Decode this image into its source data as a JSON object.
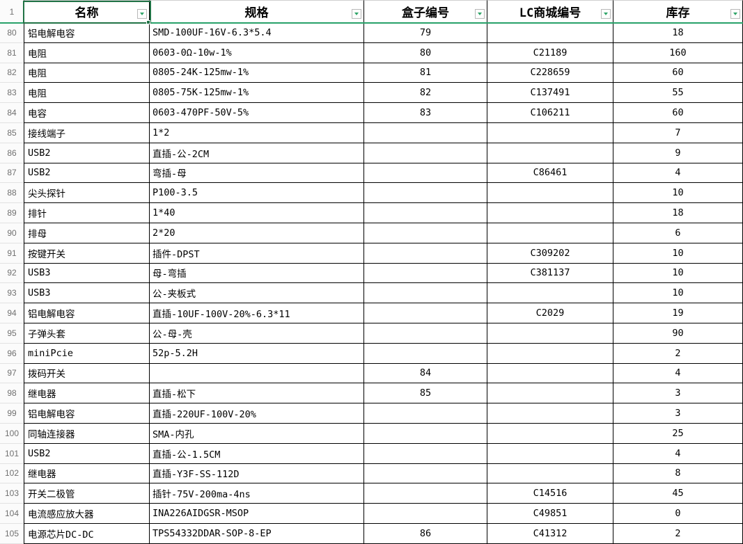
{
  "sheet": {
    "corner_row_label": "1",
    "selected_cell": "A1",
    "colors": {
      "selection_border": "#217346",
      "freeze_line": "#27a169",
      "filter_arrow": "#2fa569",
      "grid_border": "#000000",
      "row_header_text": "#707070"
    }
  },
  "columns": [
    {
      "key": "name",
      "label": "名称"
    },
    {
      "key": "spec",
      "label": "规格"
    },
    {
      "key": "box",
      "label": "盒子编号"
    },
    {
      "key": "lc",
      "label": "LC商城编号"
    },
    {
      "key": "stock",
      "label": "库存"
    }
  ],
  "rows": [
    {
      "num": "80",
      "name": "铝电解电容",
      "spec": "SMD-100UF-16V-6.3*5.4",
      "box": "79",
      "lc": "",
      "stock": "18"
    },
    {
      "num": "81",
      "name": "电阻",
      "spec": "0603-0Ω-10w-1%",
      "box": "80",
      "lc": "C21189",
      "stock": "160"
    },
    {
      "num": "82",
      "name": "电阻",
      "spec": "0805-24K-125mw-1%",
      "box": "81",
      "lc": "C228659",
      "stock": "60"
    },
    {
      "num": "83",
      "name": "电阻",
      "spec": "0805-75K-125mw-1%",
      "box": "82",
      "lc": "C137491",
      "stock": "55"
    },
    {
      "num": "84",
      "name": "电容",
      "spec": "0603-470PF-50V-5%",
      "box": "83",
      "lc": "C106211",
      "stock": "60"
    },
    {
      "num": "85",
      "name": "接线端子",
      "spec": "1*2",
      "box": "",
      "lc": "",
      "stock": "7"
    },
    {
      "num": "86",
      "name": "USB2",
      "spec": "直插-公-2CM",
      "box": "",
      "lc": "",
      "stock": "9"
    },
    {
      "num": "87",
      "name": "USB2",
      "spec": "弯插-母",
      "box": "",
      "lc": "C86461",
      "stock": "4"
    },
    {
      "num": "88",
      "name": "尖头探针",
      "spec": "P100-3.5",
      "box": "",
      "lc": "",
      "stock": "10"
    },
    {
      "num": "89",
      "name": "排针",
      "spec": "1*40",
      "box": "",
      "lc": "",
      "stock": "18"
    },
    {
      "num": "90",
      "name": "排母",
      "spec": "2*20",
      "box": "",
      "lc": "",
      "stock": "6"
    },
    {
      "num": "91",
      "name": "按键开关",
      "spec": "插件-DPST",
      "box": "",
      "lc": "C309202",
      "stock": "10"
    },
    {
      "num": "92",
      "name": "USB3",
      "spec": "母-弯插",
      "box": "",
      "lc": "C381137",
      "stock": "10"
    },
    {
      "num": "93",
      "name": "USB3",
      "spec": "公-夹板式",
      "box": "",
      "lc": "",
      "stock": "10"
    },
    {
      "num": "94",
      "name": "铝电解电容",
      "spec": "直插-10UF-100V-20%-6.3*11",
      "box": "",
      "lc": "C2029",
      "stock": "19"
    },
    {
      "num": "95",
      "name": "子弹头套",
      "spec": "公-母-壳",
      "box": "",
      "lc": "",
      "stock": "90"
    },
    {
      "num": "96",
      "name": "miniPcie",
      "spec": "52p-5.2H",
      "box": "",
      "lc": "",
      "stock": "2"
    },
    {
      "num": "97",
      "name": "拨码开关",
      "spec": "",
      "box": "84",
      "lc": "",
      "stock": "4"
    },
    {
      "num": "98",
      "name": "继电器",
      "spec": "直插-松下",
      "box": "85",
      "lc": "",
      "stock": "3"
    },
    {
      "num": "99",
      "name": "铝电解电容",
      "spec": "直插-220UF-100V-20%",
      "box": "",
      "lc": "",
      "stock": "3"
    },
    {
      "num": "100",
      "name": "同轴连接器",
      "spec": "SMA-内孔",
      "box": "",
      "lc": "",
      "stock": "25"
    },
    {
      "num": "101",
      "name": "USB2",
      "spec": "直插-公-1.5CM",
      "box": "",
      "lc": "",
      "stock": "4"
    },
    {
      "num": "102",
      "name": "继电器",
      "spec": "直插-Y3F-SS-112D",
      "box": "",
      "lc": "",
      "stock": "8"
    },
    {
      "num": "103",
      "name": "开关二极管",
      "spec": "插针-75V-200ma-4ns",
      "box": "",
      "lc": "C14516",
      "stock": "45"
    },
    {
      "num": "104",
      "name": "电流感应放大器",
      "spec": "INA226AIDGSR-MSOP",
      "box": "",
      "lc": "C49851",
      "stock": "0"
    },
    {
      "num": "105",
      "name": "电源芯片DC-DC",
      "spec": "TPS54332DDAR-SOP-8-EP",
      "box": "86",
      "lc": "C41312",
      "stock": "2"
    }
  ]
}
